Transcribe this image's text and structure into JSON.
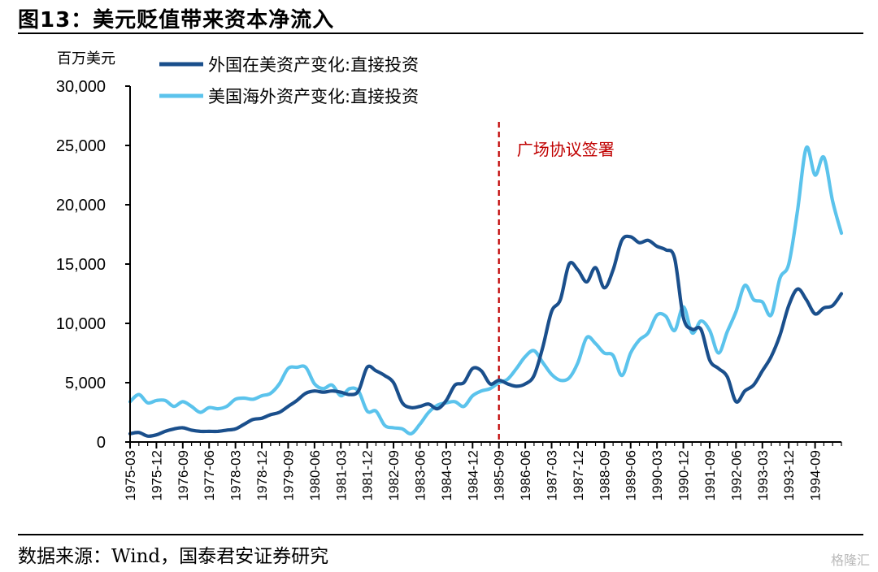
{
  "figure": {
    "title": "图13：美元贬值带来资本净流入",
    "source": "数据来源：Wind，国泰君安证券研究",
    "watermark": "格隆汇"
  },
  "chart_data": {
    "type": "line",
    "unit_label": "百万美元",
    "ylim": [
      0,
      30000
    ],
    "yticks": [
      0,
      5000,
      10000,
      15000,
      20000,
      25000,
      30000
    ],
    "ytick_labels": [
      "0",
      "5,000",
      "10,000",
      "15,000",
      "20,000",
      "25,000",
      "30,000"
    ],
    "xlim": [
      1975.17,
      1995.42
    ],
    "xtick_labels": [
      "1975-03",
      "1975-12",
      "1976-09",
      "1977-06",
      "1978-03",
      "1978-12",
      "1979-09",
      "1980-06",
      "1981-03",
      "1981-12",
      "1982-09",
      "1983-06",
      "1984-03",
      "1984-12",
      "1985-09",
      "1986-06",
      "1987-03",
      "1987-12",
      "1988-09",
      "1989-06",
      "1990-03",
      "1990-12",
      "1991-09",
      "1992-06",
      "1993-03",
      "1993-12",
      "1994-09"
    ],
    "xtick_values": [
      1975.17,
      1975.92,
      1976.67,
      1977.42,
      1978.17,
      1978.92,
      1979.67,
      1980.42,
      1981.17,
      1981.92,
      1982.67,
      1983.42,
      1984.17,
      1984.92,
      1985.67,
      1986.42,
      1987.17,
      1987.92,
      1988.67,
      1989.42,
      1990.17,
      1990.92,
      1991.67,
      1992.42,
      1993.17,
      1993.92,
      1994.67
    ],
    "grid": false,
    "legend_position": "top-left",
    "annotations": [
      {
        "text": "广场协议签署",
        "x": 1985.67,
        "style": "dashed-vertical",
        "color": "#c00000"
      }
    ],
    "series": [
      {
        "name": "外国在美资产变化:直接投资",
        "color": "#1a4f8c",
        "x": [
          1975.17,
          1975.42,
          1975.67,
          1975.92,
          1976.17,
          1976.42,
          1976.67,
          1976.92,
          1977.17,
          1977.42,
          1977.67,
          1977.92,
          1978.17,
          1978.42,
          1978.67,
          1978.92,
          1979.17,
          1979.42,
          1979.67,
          1979.92,
          1980.17,
          1980.42,
          1980.67,
          1980.92,
          1981.17,
          1981.42,
          1981.67,
          1981.92,
          1982.17,
          1982.42,
          1982.67,
          1982.92,
          1983.17,
          1983.42,
          1983.67,
          1983.92,
          1984.17,
          1984.42,
          1984.67,
          1984.92,
          1985.17,
          1985.42,
          1985.67,
          1985.92,
          1986.17,
          1986.42,
          1986.67,
          1986.92,
          1987.17,
          1987.42,
          1987.67,
          1987.92,
          1988.17,
          1988.42,
          1988.67,
          1988.92,
          1989.17,
          1989.42,
          1989.67,
          1989.92,
          1990.17,
          1990.42,
          1990.67,
          1990.92,
          1991.17,
          1991.42,
          1991.67,
          1991.92,
          1992.17,
          1992.42,
          1992.67,
          1992.92,
          1993.17,
          1993.42,
          1993.67,
          1993.92,
          1994.17,
          1994.42,
          1994.67,
          1994.92,
          1995.17,
          1995.42
        ],
        "values": [
          700,
          800,
          500,
          600,
          900,
          1100,
          1200,
          1000,
          900,
          900,
          900,
          1000,
          1100,
          1500,
          1900,
          2000,
          2300,
          2500,
          3000,
          3500,
          4100,
          4300,
          4200,
          4300,
          4200,
          4000,
          4300,
          6300,
          6000,
          5600,
          5000,
          3300,
          2900,
          3000,
          3200,
          2800,
          3500,
          4800,
          5000,
          6200,
          6000,
          4900,
          5200,
          4900,
          4700,
          4900,
          5600,
          8000,
          11000,
          12000,
          15000,
          14500,
          13500,
          14700,
          13000,
          14500,
          17000,
          17300,
          16800,
          17000,
          16500,
          16200,
          15500,
          10500,
          9500,
          9500,
          6900,
          6200,
          5500,
          3400,
          4300,
          4800,
          6000,
          7200,
          9000,
          11500,
          12900,
          12000,
          10800,
          11300,
          11500,
          12500
        ]
      },
      {
        "name": "美国海外资产变化:直接投资",
        "color": "#5bc3ec",
        "x": [
          1975.17,
          1975.42,
          1975.67,
          1975.92,
          1976.17,
          1976.42,
          1976.67,
          1976.92,
          1977.17,
          1977.42,
          1977.67,
          1977.92,
          1978.17,
          1978.42,
          1978.67,
          1978.92,
          1979.17,
          1979.42,
          1979.67,
          1979.92,
          1980.17,
          1980.42,
          1980.67,
          1980.92,
          1981.17,
          1981.42,
          1981.67,
          1981.92,
          1982.17,
          1982.42,
          1982.67,
          1982.92,
          1983.17,
          1983.42,
          1983.67,
          1983.92,
          1984.17,
          1984.42,
          1984.67,
          1984.92,
          1985.17,
          1985.42,
          1985.67,
          1985.92,
          1986.17,
          1986.42,
          1986.67,
          1986.92,
          1987.17,
          1987.42,
          1987.67,
          1987.92,
          1988.17,
          1988.42,
          1988.67,
          1988.92,
          1989.17,
          1989.42,
          1989.67,
          1989.92,
          1990.17,
          1990.42,
          1990.67,
          1990.92,
          1991.17,
          1991.42,
          1991.67,
          1991.92,
          1992.17,
          1992.42,
          1992.67,
          1992.92,
          1993.17,
          1993.42,
          1993.67,
          1993.92,
          1994.17,
          1994.42,
          1994.67,
          1994.92,
          1995.17,
          1995.42
        ],
        "values": [
          3400,
          4000,
          3300,
          3500,
          3500,
          3000,
          3400,
          3000,
          2500,
          2900,
          2800,
          3000,
          3600,
          3700,
          3600,
          3900,
          4100,
          4900,
          6200,
          6300,
          6300,
          4900,
          4500,
          4800,
          3900,
          4500,
          4300,
          2600,
          2600,
          1400,
          1200,
          1100,
          700,
          1500,
          2500,
          3100,
          3300,
          3400,
          3000,
          3900,
          4300,
          4500,
          5000,
          5300,
          6200,
          7200,
          7700,
          6700,
          5700,
          5200,
          5400,
          6700,
          8800,
          8300,
          7500,
          7300,
          5600,
          7500,
          8600,
          9200,
          10700,
          10600,
          9400,
          11400,
          9200,
          10200,
          9400,
          7500,
          9300,
          11000,
          13200,
          12000,
          11800,
          10700,
          13800,
          15000,
          19500,
          24800,
          22500,
          24000,
          20300,
          17600
        ]
      }
    ]
  }
}
